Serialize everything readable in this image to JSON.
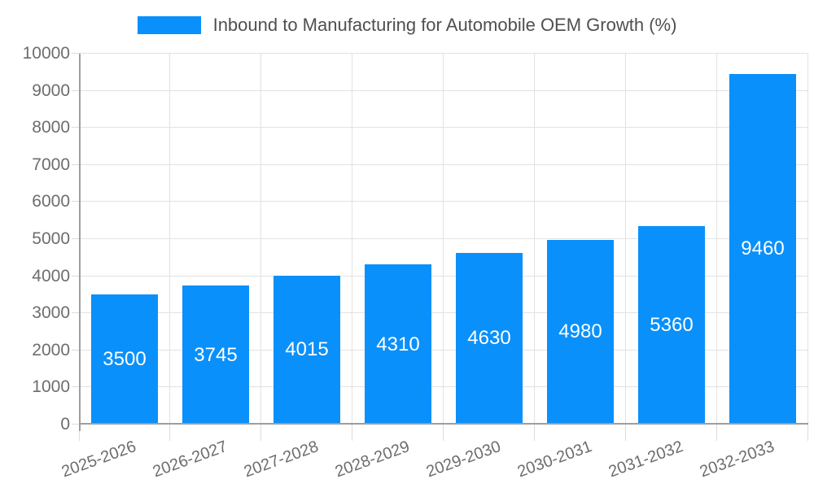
{
  "legend": {
    "label": "Inbound to Manufacturing for Automobile OEM Growth (%)"
  },
  "chart_data": {
    "type": "bar",
    "title": "Inbound to Manufacturing for Automobile OEM Growth (%)",
    "categories": [
      "2025-2026",
      "2026-2027",
      "2027-2028",
      "2028-2029",
      "2029-2030",
      "2030-2031",
      "2031-2032",
      "2032-2033"
    ],
    "values": [
      3500,
      3745,
      4015,
      4310,
      4630,
      4980,
      5360,
      9460
    ],
    "bar_value_labels": [
      "3500",
      "3745",
      "4015",
      "4310",
      "4630",
      "4980",
      "5360",
      "9460"
    ],
    "xlabel": "",
    "ylabel": "",
    "ylim": [
      0,
      10000
    ],
    "yticks": [
      0,
      1000,
      2000,
      3000,
      4000,
      5000,
      6000,
      7000,
      8000,
      9000,
      10000
    ],
    "grid": true,
    "legend_position": "top-center",
    "x_tick_rotation_deg": -20
  },
  "colors": {
    "accent": "#0a90fa",
    "grid": "#e2e2e2",
    "tick": "#dcdcdc",
    "axis": "#9e9e9e",
    "tick_label": "#6d6d6d",
    "legend_text": "#4f4f4f",
    "bar_label": "#ffffff"
  }
}
